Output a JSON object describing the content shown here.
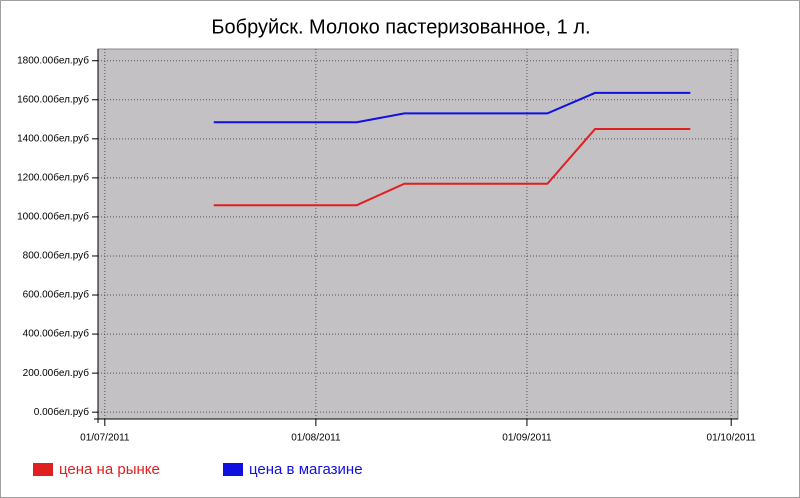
{
  "chart_data": {
    "type": "line",
    "title": "Бобруйск. Молоко пастеризованное, 1 л.",
    "x": [
      "2011-07-17",
      "2011-07-24",
      "2011-07-31",
      "2011-08-07",
      "2011-08-14",
      "2011-08-21",
      "2011-08-28",
      "2011-09-04",
      "2011-09-11",
      "2011-09-18",
      "2011-09-25"
    ],
    "series": [
      {
        "name": "цена на рынке",
        "color": "#e02020",
        "values": [
          1060,
          1060,
          1060,
          1060,
          1170,
          1170,
          1170,
          1170,
          1450,
          1450,
          1450
        ]
      },
      {
        "name": "цена в магазине",
        "color": "#1010e0",
        "values": [
          1485,
          1485,
          1485,
          1485,
          1530,
          1530,
          1530,
          1530,
          1635,
          1635,
          1635
        ]
      }
    ],
    "xlim": [
      "2011-06-30",
      "2011-10-02"
    ],
    "xticks": [
      {
        "value": "2011-07-01",
        "label": "01/07/2011"
      },
      {
        "value": "2011-08-01",
        "label": "01/08/2011"
      },
      {
        "value": "2011-09-01",
        "label": "01/09/2011"
      },
      {
        "value": "2011-10-01",
        "label": "01/10/2011"
      }
    ],
    "ylim": [
      -35,
      1860
    ],
    "yticks": [
      {
        "value": 0,
        "label": "0.00бел.руб"
      },
      {
        "value": 200,
        "label": "200.00бел.руб"
      },
      {
        "value": 400,
        "label": "400.00бел.руб"
      },
      {
        "value": 600,
        "label": "600.00бел.руб"
      },
      {
        "value": 800,
        "label": "800.00бел.руб"
      },
      {
        "value": 1000,
        "label": "1000.00бел.руб"
      },
      {
        "value": 1200,
        "label": "1200.00бел.руб"
      },
      {
        "value": 1400,
        "label": "1400.00бел.руб"
      },
      {
        "value": 1600,
        "label": "1600.00бел.руб"
      },
      {
        "value": 1800,
        "label": "1800.00бел.руб"
      }
    ],
    "grid": true,
    "legend": "bottom"
  }
}
